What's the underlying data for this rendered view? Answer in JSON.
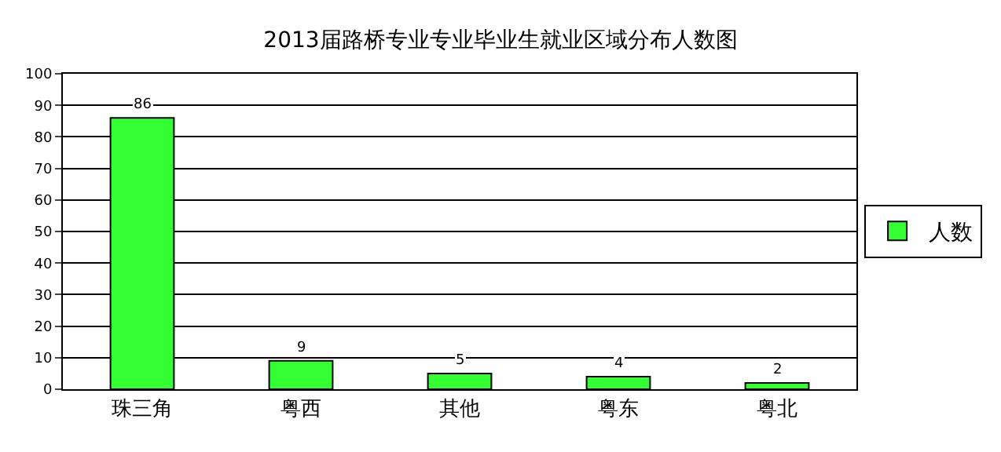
{
  "chart_data": {
    "type": "bar",
    "title": "2013届路桥专业专业毕业生就业区域分布人数图",
    "categories": [
      "珠三角",
      "粤西",
      "其他",
      "粤东",
      "粤北"
    ],
    "series": [
      {
        "name": "人数",
        "color": "#33ff33",
        "values": [
          86,
          9,
          5,
          4,
          2
        ]
      }
    ],
    "ylim": [
      0,
      100
    ],
    "yticks": [
      0,
      10,
      20,
      30,
      40,
      50,
      60,
      70,
      80,
      90,
      100
    ],
    "grid": "y",
    "legend": "right",
    "data_labels": true
  }
}
